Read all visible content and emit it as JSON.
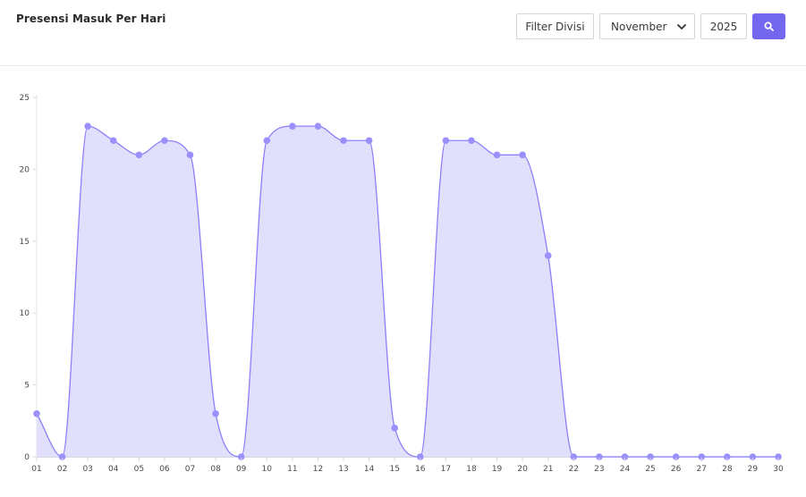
{
  "header": {
    "title": "Presensi Masuk Per Hari",
    "filter_label": "Filter Divisi",
    "month_value": "November",
    "year_value": "2025",
    "search_icon": "search-icon",
    "accent_color": "#7367f0"
  },
  "chart_data": {
    "type": "area",
    "title": "Presensi Masuk Per Hari",
    "xlabel": "",
    "ylabel": "",
    "ylim": [
      0,
      25
    ],
    "yticks": [
      "0",
      "5",
      "10",
      "15",
      "20",
      "25"
    ],
    "grid": false,
    "categories": [
      "01",
      "02",
      "03",
      "04",
      "05",
      "06",
      "07",
      "08",
      "09",
      "10",
      "11",
      "12",
      "13",
      "14",
      "15",
      "16",
      "17",
      "18",
      "19",
      "20",
      "21",
      "22",
      "23",
      "24",
      "25",
      "26",
      "27",
      "28",
      "29",
      "30"
    ],
    "series": [
      {
        "values": [
          3,
          0,
          23,
          22,
          21,
          22,
          21,
          3,
          0,
          22,
          23,
          23,
          22,
          22,
          2,
          0,
          22,
          22,
          21,
          21,
          14,
          0,
          0,
          0,
          0,
          0,
          0,
          0,
          0,
          0
        ],
        "color": "#8b80f9",
        "fill": "#e2dffd"
      }
    ]
  }
}
